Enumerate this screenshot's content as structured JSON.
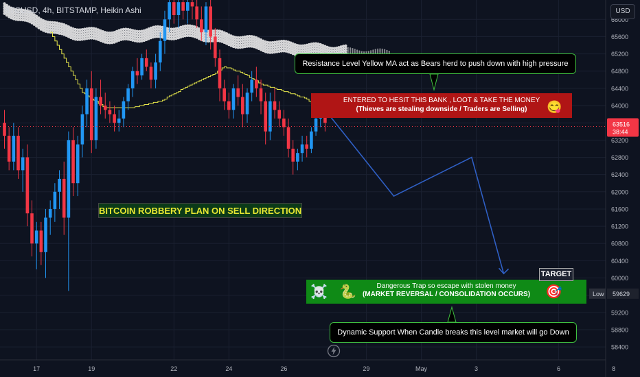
{
  "header": {
    "symbol_line": "BTCUSD, 4h, BITSTAMP, Heikin Ashi",
    "currency_button": "USD"
  },
  "price_scale": {
    "last_price": "63516",
    "countdown": "38:44",
    "low_label": "Low",
    "low_value": "59629"
  },
  "annotations": {
    "resistance_note": "Resistance Level Yellow MA act as Bears herd to push down with high pressure",
    "entry_line1": "ENTERED TO HESIT THIS BANK , LOOT & TAKE THE MONEY",
    "entry_line2": "(Thieves are stealing downside / Traders are Selling)",
    "robbery_title": "BITCOIN ROBBERY PLAN ON SELL DIRECTION",
    "target_label": "TARGET",
    "target_line1": "Dangerous Trap so escape with stolen money",
    "target_line2": "(MARKET REVERSAL / CONSOLIDATION OCCURS)",
    "support_note": "Dynamic Support When Candle breaks this level market will go Down"
  },
  "icons": {
    "entry_emoji": "smiling-face-icon",
    "skull": "skull-crossbones-icon",
    "snake": "snake-icon",
    "target": "target-icon",
    "lightning": "lightning-icon"
  },
  "colors": {
    "background": "#0e1320",
    "bull": "#2196f3",
    "bear": "#f23645",
    "yellow_ma": "#e6e64a",
    "ribbon": "#e8e8e8",
    "path": "#2f5fc4",
    "entry_box": "#b01515",
    "target_box": "#0f8a16"
  },
  "chart_data": {
    "type": "candlestick",
    "y_ticks": [
      58400,
      58800,
      59200,
      59600,
      60000,
      60400,
      60800,
      61200,
      61600,
      62000,
      62400,
      62800,
      63200,
      63600,
      64000,
      64400,
      64800,
      65200,
      65600,
      66000
    ],
    "y_range": [
      58100,
      66450
    ],
    "x_ticks": [
      {
        "label": "17",
        "index": 7
      },
      {
        "label": "19",
        "index": 19
      },
      {
        "label": "22",
        "index": 37
      },
      {
        "label": "24",
        "index": 49
      },
      {
        "label": "26",
        "index": 61
      },
      {
        "label": "29",
        "index": 79
      },
      {
        "label": "May",
        "index": 91
      },
      {
        "label": "3",
        "index": 103
      },
      {
        "label": "6",
        "index": 121
      },
      {
        "label": "8",
        "index": 133
      }
    ],
    "candles": [
      {
        "o": 63600,
        "h": 63900,
        "l": 63000,
        "c": 63300
      },
      {
        "o": 63300,
        "h": 63500,
        "l": 62500,
        "c": 62700
      },
      {
        "o": 62700,
        "h": 63600,
        "l": 62500,
        "c": 63300
      },
      {
        "o": 63300,
        "h": 63500,
        "l": 62300,
        "c": 62500
      },
      {
        "o": 62500,
        "h": 63000,
        "l": 62000,
        "c": 62800
      },
      {
        "o": 62800,
        "h": 63100,
        "l": 61200,
        "c": 61500
      },
      {
        "o": 61500,
        "h": 61800,
        "l": 60500,
        "c": 60800
      },
      {
        "o": 60800,
        "h": 61300,
        "l": 60200,
        "c": 61100
      },
      {
        "o": 61100,
        "h": 61300,
        "l": 60300,
        "c": 60600
      },
      {
        "o": 60600,
        "h": 61600,
        "l": 60000,
        "c": 61400
      },
      {
        "o": 61400,
        "h": 61800,
        "l": 61000,
        "c": 61600
      },
      {
        "o": 61600,
        "h": 62200,
        "l": 61300,
        "c": 62000
      },
      {
        "o": 62000,
        "h": 62500,
        "l": 61600,
        "c": 62300
      },
      {
        "o": 62300,
        "h": 62700,
        "l": 61000,
        "c": 61400
      },
      {
        "o": 61400,
        "h": 63400,
        "l": 59700,
        "c": 63200
      },
      {
        "o": 63200,
        "h": 63500,
        "l": 61900,
        "c": 62200
      },
      {
        "o": 62200,
        "h": 63300,
        "l": 61900,
        "c": 63100
      },
      {
        "o": 63100,
        "h": 64000,
        "l": 62800,
        "c": 63800
      },
      {
        "o": 63800,
        "h": 64600,
        "l": 63500,
        "c": 64400
      },
      {
        "o": 64400,
        "h": 64800,
        "l": 62900,
        "c": 63200
      },
      {
        "o": 63200,
        "h": 64400,
        "l": 63000,
        "c": 64200
      },
      {
        "o": 64200,
        "h": 64600,
        "l": 63800,
        "c": 64000
      },
      {
        "o": 64000,
        "h": 64300,
        "l": 63700,
        "c": 63900
      },
      {
        "o": 63900,
        "h": 64100,
        "l": 63600,
        "c": 63800
      },
      {
        "o": 63800,
        "h": 64000,
        "l": 63400,
        "c": 63600
      },
      {
        "o": 63600,
        "h": 63900,
        "l": 63400,
        "c": 63700
      },
      {
        "o": 63700,
        "h": 64200,
        "l": 63500,
        "c": 64100
      },
      {
        "o": 64100,
        "h": 64500,
        "l": 63900,
        "c": 64400
      },
      {
        "o": 64400,
        "h": 64900,
        "l": 64200,
        "c": 64800
      },
      {
        "o": 64800,
        "h": 65100,
        "l": 64500,
        "c": 64700
      },
      {
        "o": 64700,
        "h": 65200,
        "l": 64600,
        "c": 65100
      },
      {
        "o": 65100,
        "h": 65300,
        "l": 64800,
        "c": 64900
      },
      {
        "o": 64900,
        "h": 65000,
        "l": 64400,
        "c": 64600
      },
      {
        "o": 64600,
        "h": 65200,
        "l": 64400,
        "c": 65000
      },
      {
        "o": 65000,
        "h": 65700,
        "l": 64800,
        "c": 65500
      },
      {
        "o": 65500,
        "h": 66200,
        "l": 65200,
        "c": 66000
      },
      {
        "o": 66000,
        "h": 66500,
        "l": 65700,
        "c": 66400
      },
      {
        "o": 66400,
        "h": 66500,
        "l": 65900,
        "c": 66100
      },
      {
        "o": 66100,
        "h": 66500,
        "l": 65800,
        "c": 66400
      },
      {
        "o": 66400,
        "h": 66500,
        "l": 66000,
        "c": 66200
      },
      {
        "o": 66200,
        "h": 66500,
        "l": 65900,
        "c": 66400
      },
      {
        "o": 66400,
        "h": 66500,
        "l": 66000,
        "c": 66300
      },
      {
        "o": 66300,
        "h": 66500,
        "l": 65800,
        "c": 66000
      },
      {
        "o": 66000,
        "h": 66300,
        "l": 65500,
        "c": 65700
      },
      {
        "o": 65700,
        "h": 66400,
        "l": 65400,
        "c": 66300
      },
      {
        "o": 66300,
        "h": 66500,
        "l": 65300,
        "c": 65600
      },
      {
        "o": 65600,
        "h": 65800,
        "l": 64900,
        "c": 65100
      },
      {
        "o": 65100,
        "h": 65300,
        "l": 64100,
        "c": 64400
      },
      {
        "o": 64400,
        "h": 64600,
        "l": 63900,
        "c": 64100
      },
      {
        "o": 64100,
        "h": 64300,
        "l": 63700,
        "c": 63900
      },
      {
        "o": 63900,
        "h": 64500,
        "l": 63700,
        "c": 64400
      },
      {
        "o": 64400,
        "h": 64700,
        "l": 64000,
        "c": 64200
      },
      {
        "o": 64200,
        "h": 64500,
        "l": 63500,
        "c": 63800
      },
      {
        "o": 63800,
        "h": 64400,
        "l": 63600,
        "c": 64300
      },
      {
        "o": 64300,
        "h": 64800,
        "l": 64100,
        "c": 64600
      },
      {
        "o": 64600,
        "h": 64900,
        "l": 64200,
        "c": 64400
      },
      {
        "o": 64400,
        "h": 64600,
        "l": 63800,
        "c": 64100
      },
      {
        "o": 64100,
        "h": 64300,
        "l": 63100,
        "c": 63400
      },
      {
        "o": 63400,
        "h": 64300,
        "l": 63200,
        "c": 64100
      },
      {
        "o": 64100,
        "h": 64400,
        "l": 63700,
        "c": 63900
      },
      {
        "o": 63900,
        "h": 64100,
        "l": 63500,
        "c": 63700
      },
      {
        "o": 63700,
        "h": 63900,
        "l": 63300,
        "c": 63500
      },
      {
        "o": 63500,
        "h": 63700,
        "l": 62800,
        "c": 63000
      },
      {
        "o": 63000,
        "h": 63200,
        "l": 62400,
        "c": 62700
      },
      {
        "o": 62700,
        "h": 63000,
        "l": 62500,
        "c": 62900
      },
      {
        "o": 62900,
        "h": 63300,
        "l": 62700,
        "c": 63100
      },
      {
        "o": 63100,
        "h": 63300,
        "l": 62800,
        "c": 63000
      },
      {
        "o": 63000,
        "h": 63500,
        "l": 62900,
        "c": 63400
      },
      {
        "o": 63400,
        "h": 63800,
        "l": 63300,
        "c": 63700
      },
      {
        "o": 63700,
        "h": 64100,
        "l": 63500,
        "c": 63900
      },
      {
        "o": 63900,
        "h": 64000,
        "l": 63400,
        "c": 63600
      }
    ],
    "yellow_ma": [
      {
        "i": 10,
        "v": 65700
      },
      {
        "i": 14,
        "v": 64900
      },
      {
        "i": 17,
        "v": 64300
      },
      {
        "i": 22,
        "v": 63950
      },
      {
        "i": 28,
        "v": 63950
      },
      {
        "i": 34,
        "v": 64100
      },
      {
        "i": 40,
        "v": 64450
      },
      {
        "i": 46,
        "v": 64750
      },
      {
        "i": 48,
        "v": 64900
      },
      {
        "i": 52,
        "v": 64750
      },
      {
        "i": 56,
        "v": 64500
      },
      {
        "i": 62,
        "v": 64300
      },
      {
        "i": 66,
        "v": 64150
      },
      {
        "i": 70,
        "v": 63750
      }
    ],
    "ribbon_ma": [
      {
        "i": 0,
        "v": 66250
      },
      {
        "i": 6,
        "v": 66000
      },
      {
        "i": 12,
        "v": 65750
      },
      {
        "i": 18,
        "v": 65650
      },
      {
        "i": 24,
        "v": 65600
      },
      {
        "i": 30,
        "v": 65650
      },
      {
        "i": 36,
        "v": 65700
      },
      {
        "i": 42,
        "v": 65700
      },
      {
        "i": 48,
        "v": 65550
      },
      {
        "i": 54,
        "v": 65450
      },
      {
        "i": 60,
        "v": 65350
      },
      {
        "i": 66,
        "v": 65300
      },
      {
        "i": 72,
        "v": 65250
      },
      {
        "i": 78,
        "v": 65220
      },
      {
        "i": 84,
        "v": 65200
      }
    ],
    "projection_path": [
      {
        "i": 70,
        "v": 63900
      },
      {
        "i": 85,
        "v": 61900
      },
      {
        "i": 102,
        "v": 62800
      },
      {
        "i": 109,
        "v": 60100
      }
    ],
    "current_price": 63516,
    "low": 59629
  }
}
